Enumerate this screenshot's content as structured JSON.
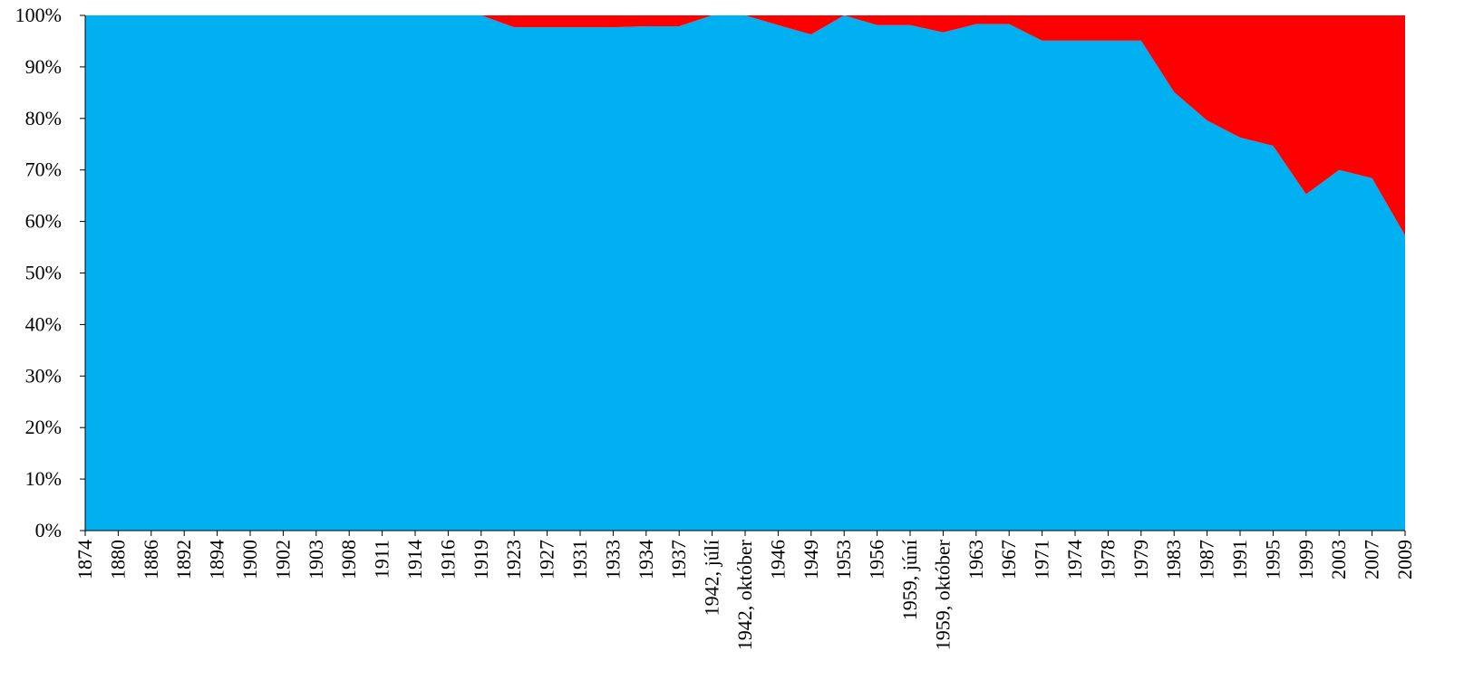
{
  "chart_data": {
    "type": "area",
    "stacked": "percent",
    "title": "",
    "xlabel": "",
    "ylabel": "",
    "ylim": [
      0,
      100
    ],
    "y_ticks": [
      "0%",
      "10%",
      "20%",
      "30%",
      "40%",
      "50%",
      "60%",
      "70%",
      "80%",
      "90%",
      "100%"
    ],
    "categories": [
      "1874",
      "1880",
      "1886",
      "1892",
      "1894",
      "1900",
      "1902",
      "1903",
      "1908",
      "1911",
      "1914",
      "1916",
      "1919",
      "1923",
      "1927",
      "1931",
      "1933",
      "1934",
      "1937",
      "1942, júlí",
      "1942, október",
      "1946",
      "1949",
      "1953",
      "1956",
      "1959, júní",
      "1959, október",
      "1963",
      "1967",
      "1971",
      "1974",
      "1978",
      "1979",
      "1983",
      "1987",
      "1991",
      "1995",
      "1999",
      "2003",
      "2007",
      "2009"
    ],
    "series": [
      {
        "color": "#00B0F0",
        "values": [
          100,
          100,
          100,
          100,
          100,
          100,
          100,
          100,
          100,
          100,
          100,
          100,
          100,
          97.7,
          97.7,
          97.7,
          97.7,
          97.9,
          97.9,
          100,
          100,
          98.1,
          96.3,
          100,
          98.1,
          98.1,
          96.7,
          98.3,
          98.3,
          95.1,
          95.1,
          95.1,
          95.1,
          85.1,
          79.6,
          76.3,
          74.7,
          65.3,
          70.0,
          68.4,
          57.3
        ]
      },
      {
        "color": "#FF0000",
        "values": [
          0,
          0,
          0,
          0,
          0,
          0,
          0,
          0,
          0,
          0,
          0,
          0,
          0,
          2.3,
          2.3,
          2.3,
          2.3,
          2.1,
          2.1,
          0,
          0,
          1.9,
          3.7,
          0,
          1.9,
          1.9,
          3.3,
          1.7,
          1.7,
          4.9,
          4.9,
          4.9,
          4.9,
          14.9,
          20.4,
          23.7,
          25.3,
          34.7,
          30.0,
          31.6,
          42.7
        ]
      }
    ],
    "grid": false,
    "legend": "none"
  }
}
